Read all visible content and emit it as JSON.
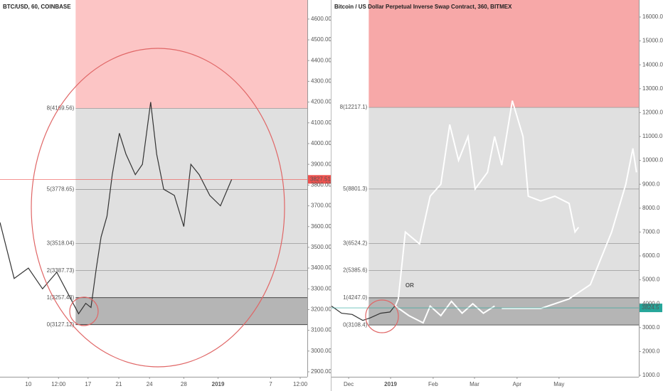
{
  "chart_data": [
    {
      "type": "line",
      "title": "BTC/USD, 60, COINBASE",
      "xlim": [
        0,
        52
      ],
      "ylim": [
        2876,
        4692
      ],
      "xticks": [
        {
          "value": 4.8,
          "label": "10"
        },
        {
          "value": 9.9,
          "label": "12:00"
        },
        {
          "value": 14.9,
          "label": "17"
        },
        {
          "value": 20.1,
          "label": "21"
        },
        {
          "value": 25.3,
          "label": "24"
        },
        {
          "value": 31.1,
          "label": "28"
        },
        {
          "value": 36.9,
          "label": "2019"
        },
        {
          "value": 45.8,
          "label": "7"
        },
        {
          "value": 50.8,
          "label": "12:00"
        }
      ],
      "yticks": [
        {
          "value": 2900,
          "label": "2900.00"
        },
        {
          "value": 3000,
          "label": "3000.00"
        },
        {
          "value": 3100,
          "label": "3100.00"
        },
        {
          "value": 3200,
          "label": "3200.00"
        },
        {
          "value": 3300,
          "label": "3300.00"
        },
        {
          "value": 3400,
          "label": "3400.00"
        },
        {
          "value": 3500,
          "label": "3500.00"
        },
        {
          "value": 3600,
          "label": "3600.00"
        },
        {
          "value": 3700,
          "label": "3700.00"
        },
        {
          "value": 3800,
          "label": "3800.00"
        },
        {
          "value": 3900,
          "label": "3900.00"
        },
        {
          "value": 4000,
          "label": "4000.00"
        },
        {
          "value": 4100,
          "label": "4100.00"
        },
        {
          "value": 4200,
          "label": "4200.00"
        },
        {
          "value": 4300,
          "label": "4300.00"
        },
        {
          "value": 4400,
          "label": "4400.00"
        },
        {
          "value": 4500,
          "label": "4500.00"
        },
        {
          "value": 4600,
          "label": "4600.00"
        }
      ],
      "fib_start": 12.8,
      "fib_levels": [
        {
          "value": 3127.12,
          "label": "0(3127.12)"
        },
        {
          "value": 3257.43,
          "label": "1(3257.43)"
        },
        {
          "value": 3387.73,
          "label": "2(3387.73)"
        },
        {
          "value": 3518.04,
          "label": "3(3518.04)"
        },
        {
          "value": 3778.65,
          "label": "5(3778.65)"
        },
        {
          "value": 4169.56,
          "label": "8(4169.56)"
        }
      ],
      "last_price": 3827.51,
      "last_price_color": "#ef5350",
      "series": [
        {
          "color": "#333333",
          "x": [
            0,
            2.4,
            4.8,
            7.2,
            9.6,
            12.0,
            13.3,
            14.5,
            15.4,
            16.3,
            17.1,
            18.1,
            19.0,
            20.2,
            21.3,
            22.9,
            24.1,
            25.5,
            26.5,
            27.7,
            29.5,
            31.1,
            32.3,
            33.7,
            35.5,
            37.3,
            39.2
          ],
          "values": [
            3620,
            3350,
            3400,
            3300,
            3380,
            3250,
            3180,
            3230,
            3210,
            3400,
            3550,
            3650,
            3850,
            4050,
            3950,
            3850,
            3900,
            4200,
            3950,
            3780,
            3750,
            3600,
            3900,
            3850,
            3750,
            3700,
            3827.51
          ]
        }
      ]
    },
    {
      "type": "line",
      "title": "Bitcoin / US Dollar Perpetual Inverse Swap Contract, 360, BITMEX",
      "annotation": "OR",
      "xlim": [
        0,
        52
      ],
      "ylim": [
        940,
        16714
      ],
      "xticks": [
        {
          "value": 2.9,
          "label": "Dec"
        },
        {
          "value": 10.0,
          "label": "2019"
        },
        {
          "value": 17.2,
          "label": "Feb"
        },
        {
          "value": 24.2,
          "label": "Mar"
        },
        {
          "value": 31.4,
          "label": "Apr"
        },
        {
          "value": 38.5,
          "label": "May"
        }
      ],
      "yticks": [
        {
          "value": 1000,
          "label": "1000.0"
        },
        {
          "value": 2000,
          "label": "2000.0"
        },
        {
          "value": 3000,
          "label": "3000.0"
        },
        {
          "value": 4000,
          "label": "4000.0"
        },
        {
          "value": 5000,
          "label": "5000.0"
        },
        {
          "value": 6000,
          "label": "6000.0"
        },
        {
          "value": 7000,
          "label": "7000.0"
        },
        {
          "value": 8000,
          "label": "8000.0"
        },
        {
          "value": 9000,
          "label": "9000.0"
        },
        {
          "value": 10000,
          "label": "10000.0"
        },
        {
          "value": 11000,
          "label": "11000.0"
        },
        {
          "value": 12000,
          "label": "12000.0"
        },
        {
          "value": 13000,
          "label": "13000.0"
        },
        {
          "value": 14000,
          "label": "14000.0"
        },
        {
          "value": 15000,
          "label": "15000.0"
        },
        {
          "value": 16000,
          "label": "16000.0"
        }
      ],
      "fib_start": 6.3,
      "fib_levels": [
        {
          "value": 3108.4,
          "label": "0(3108.4)"
        },
        {
          "value": 4247.0,
          "label": "1(4247.0)"
        },
        {
          "value": 5385.6,
          "label": "2(5385.6)"
        },
        {
          "value": 6524.2,
          "label": "3(6524.2)"
        },
        {
          "value": 8801.3,
          "label": "5(8801.3)"
        },
        {
          "value": 12217.1,
          "label": "8(12217.1)"
        }
      ],
      "last_price": 3824.5,
      "last_price_color": "#26a69a",
      "series": [
        {
          "color": "#333333",
          "x": [
            0,
            1.7,
            3.5,
            5.3,
            6.5,
            8.3,
            9.9,
            10.7
          ],
          "values": [
            3900,
            3600,
            3550,
            3300,
            3400,
            3600,
            3650,
            3900
          ]
        },
        {
          "color": "#ffffff",
          "x": [
            10.8,
            11.3,
            12.5,
            14.9,
            16.7,
            18.5,
            20.0,
            21.5,
            23.1,
            24.3,
            26.4,
            27.6,
            28.8,
            30.6,
            32.4,
            33.3,
            35.4,
            37.8,
            40.2,
            41.2,
            41.8
          ],
          "values": [
            3900,
            4200,
            7000,
            6500,
            8500,
            9000,
            11500,
            10000,
            11000,
            8800,
            9500,
            11000,
            9800,
            12500,
            11000,
            8500,
            8300,
            8500,
            8200,
            7000,
            7200
          ]
        },
        {
          "color": "#ffffff",
          "x": [
            10.8,
            13.1,
            15.5,
            16.7,
            18.5,
            20.3,
            22.1,
            23.9,
            25.7,
            27.6
          ],
          "values": [
            3900,
            3500,
            3200,
            3900,
            3500,
            4100,
            3600,
            4000,
            3600,
            3900
          ]
        },
        {
          "color": "#ffffff",
          "x": [
            28.8,
            35.4,
            40.2,
            43.8,
            47.4,
            49.8,
            51.0,
            51.6
          ],
          "values": [
            3800,
            3800,
            4200,
            4800,
            7000,
            9000,
            10500,
            9500
          ]
        }
      ]
    }
  ]
}
